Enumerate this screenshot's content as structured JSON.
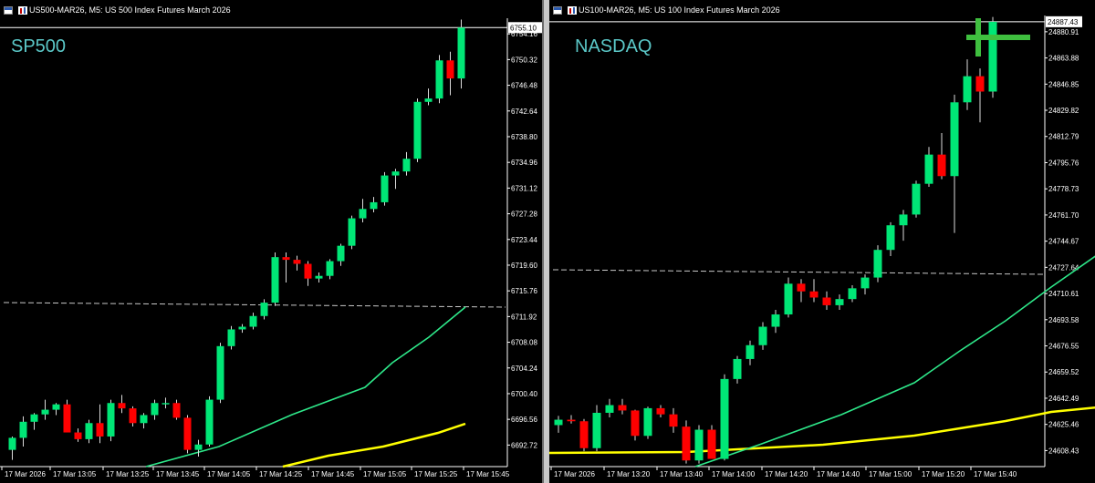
{
  "colors": {
    "background": "#000000",
    "bull_candle": "#00e676",
    "bear_candle": "#ff0000",
    "ma_fast": "#2ee88a",
    "ma_slow": "#ffff00",
    "axis_text": "#ffffff",
    "label_text": "#5bc8c8"
  },
  "charts": [
    {
      "id": "left",
      "title": "US500-MAR26, M5:  US 500 Index Futures March 2026",
      "label": "SP500",
      "icons": [
        "chart-window-icon",
        "candlestick-icon"
      ]
    },
    {
      "id": "right",
      "title": "US100-MAR26, M5:  US 100 Index Futures March 2026",
      "label": "NASDAQ",
      "icons": [
        "chart-window-icon",
        "candlestick-icon"
      ]
    }
  ],
  "chart_data": [
    {
      "type": "candlestick",
      "symbol": "US500-MAR26",
      "timeframe": "M5",
      "y_ticks": [
        "6754.16",
        "6750.32",
        "6746.48",
        "6742.64",
        "6738.80",
        "6734.96",
        "6731.12",
        "6727.28",
        "6723.44",
        "6719.60",
        "6715.76",
        "6711.92",
        "6708.08",
        "6704.24",
        "6700.40",
        "6696.56",
        "6692.72"
      ],
      "ylim": [
        6689.5,
        6756.5
      ],
      "current_price": "6755.10",
      "x_ticks": [
        "17 Mar 2026",
        "17 Mar 13:05",
        "17 Mar 13:25",
        "17 Mar 13:45",
        "17 Mar 14:05",
        "17 Mar 14:25",
        "17 Mar 14:45",
        "17 Mar 15:05",
        "17 Mar 15:25",
        "17 Mar 15:45"
      ],
      "candles": [
        [
          6692.0,
          6694.0,
          6690.5,
          6693.8
        ],
        [
          6693.8,
          6697.0,
          6692.5,
          6696.2
        ],
        [
          6696.2,
          6697.5,
          6695.0,
          6697.3
        ],
        [
          6697.3,
          6699.5,
          6696.5,
          6698.0
        ],
        [
          6698.0,
          6699.0,
          6697.2,
          6698.8
        ],
        [
          6698.8,
          6699.5,
          6695.0,
          6694.6
        ],
        [
          6694.6,
          6695.2,
          6693.2,
          6693.6
        ],
        [
          6693.6,
          6696.5,
          6693.0,
          6696.0
        ],
        [
          6696.0,
          6698.8,
          6693.0,
          6694.0
        ],
        [
          6694.0,
          6699.5,
          6693.3,
          6699.0
        ],
        [
          6699.0,
          6700.2,
          6697.5,
          6698.2
        ],
        [
          6698.2,
          6698.5,
          6695.5,
          6696.0
        ],
        [
          6696.0,
          6697.5,
          6695.2,
          6697.2
        ],
        [
          6697.2,
          6699.5,
          6696.5,
          6699.0
        ],
        [
          6699.0,
          6699.8,
          6698.2,
          6699.0
        ],
        [
          6699.0,
          6699.5,
          6696.5,
          6696.8
        ],
        [
          6696.8,
          6697.2,
          6691.5,
          6692.0
        ],
        [
          6692.0,
          6693.5,
          6691.0,
          6692.8
        ],
        [
          6692.8,
          6700.0,
          6692.5,
          6699.5
        ],
        [
          6699.5,
          6708.0,
          6699.0,
          6707.5
        ],
        [
          6707.5,
          6710.5,
          6707.0,
          6710.0
        ],
        [
          6710.0,
          6710.8,
          6709.5,
          6710.4
        ],
        [
          6710.4,
          6712.5,
          6710.0,
          6712.0
        ],
        [
          6712.0,
          6714.5,
          6711.5,
          6714.0
        ],
        [
          6714.0,
          6721.5,
          6713.5,
          6720.8
        ],
        [
          6720.8,
          6721.5,
          6717.0,
          6720.4
        ],
        [
          6720.4,
          6721.0,
          6718.8,
          6719.8
        ],
        [
          6719.8,
          6720.2,
          6716.5,
          6717.6
        ],
        [
          6717.6,
          6718.5,
          6717.0,
          6718.0
        ],
        [
          6718.0,
          6720.5,
          6717.5,
          6720.2
        ],
        [
          6720.2,
          6722.8,
          6719.5,
          6722.5
        ],
        [
          6722.5,
          6727.0,
          6722.0,
          6726.6
        ],
        [
          6726.6,
          6729.5,
          6726.0,
          6728.0
        ],
        [
          6728.0,
          6729.8,
          6727.5,
          6729.0
        ],
        [
          6729.0,
          6733.5,
          6728.5,
          6733.0
        ],
        [
          6733.0,
          6734.0,
          6731.0,
          6733.6
        ],
        [
          6733.6,
          6736.5,
          6733.0,
          6735.5
        ],
        [
          6735.5,
          6744.5,
          6735.0,
          6744.0
        ],
        [
          6744.0,
          6746.0,
          6743.5,
          6744.5
        ],
        [
          6744.5,
          6751.0,
          6743.8,
          6750.2
        ],
        [
          6750.2,
          6751.5,
          6745.0,
          6747.5
        ],
        [
          6747.5,
          6756.3,
          6746.0,
          6755.1
        ]
      ],
      "series": [
        {
          "name": "",
          "type": "line",
          "color": "#2ee88a"
        },
        {
          "name": "",
          "type": "line",
          "color": "#ffff00"
        }
      ]
    },
    {
      "type": "candlestick",
      "symbol": "US100-MAR26",
      "timeframe": "M5",
      "y_ticks": [
        "24880.91",
        "24863.88",
        "24846.85",
        "24829.82",
        "24812.79",
        "24795.76",
        "24778.73",
        "24761.70",
        "24744.67",
        "24727.64",
        "24710.61",
        "24693.58",
        "24676.55",
        "24659.52",
        "24642.49",
        "24625.46",
        "24608.43"
      ],
      "ylim": [
        24598.0,
        24891.5
      ],
      "current_price": "24887.43",
      "x_ticks": [
        "17 Mar 2026",
        "17 Mar 13:20",
        "17 Mar 13:40",
        "17 Mar 14:00",
        "17 Mar 14:20",
        "17 Mar 14:40",
        "17 Mar 15:00",
        "17 Mar 15:20",
        "17 Mar 15:40"
      ],
      "candles": [
        [
          24625.0,
          24631.0,
          24620.0,
          24628.5
        ],
        [
          24628.5,
          24631.5,
          24626.0,
          24627.5
        ],
        [
          24627.5,
          24629.0,
          24608.0,
          24610.0
        ],
        [
          24610.0,
          24638.0,
          24608.0,
          24633.0
        ],
        [
          24633.0,
          24642.0,
          24630.0,
          24638.0
        ],
        [
          24638.0,
          24642.0,
          24632.0,
          24634.5
        ],
        [
          24634.5,
          24635.0,
          24615.0,
          24618.0
        ],
        [
          24618.0,
          24637.0,
          24616.0,
          24636.0
        ],
        [
          24636.0,
          24638.0,
          24630.0,
          24632.0
        ],
        [
          24632.0,
          24636.0,
          24620.0,
          24624.0
        ],
        [
          24624.0,
          24628.0,
          24600.0,
          24602.0
        ],
        [
          24602.0,
          24625.0,
          24600.0,
          24622.0
        ],
        [
          24622.0,
          24625.0,
          24605.0,
          24603.0
        ],
        [
          24603.0,
          24658.0,
          24602.0,
          24655.0
        ],
        [
          24655.0,
          24670.0,
          24652.0,
          24668.0
        ],
        [
          24668.0,
          24680.0,
          24664.0,
          24677.0
        ],
        [
          24677.0,
          24692.0,
          24674.0,
          24689.0
        ],
        [
          24689.0,
          24700.0,
          24685.0,
          24697.0
        ],
        [
          24697.0,
          24721.0,
          24695.0,
          24717.0
        ],
        [
          24717.0,
          24720.0,
          24705.0,
          24712.0
        ],
        [
          24712.0,
          24720.0,
          24705.0,
          24708.0
        ],
        [
          24708.0,
          24712.0,
          24700.0,
          24703.0
        ],
        [
          24703.0,
          24710.0,
          24700.0,
          24707.0
        ],
        [
          24707.0,
          24716.0,
          24705.0,
          24714.0
        ],
        [
          24714.0,
          24723.0,
          24710.0,
          24721.0
        ],
        [
          24721.0,
          24742.0,
          24718.0,
          24739.0
        ],
        [
          24739.0,
          24757.0,
          24735.0,
          24755.0
        ],
        [
          24755.0,
          24765.0,
          24745.0,
          24762.0
        ],
        [
          24762.0,
          24784.0,
          24760.0,
          24782.0
        ],
        [
          24782.0,
          24806.0,
          24780.0,
          24801.0
        ],
        [
          24801.0,
          24815.0,
          24785.0,
          24787.0
        ],
        [
          24787.0,
          24840.0,
          24750.0,
          24835.0
        ],
        [
          24835.0,
          24863.0,
          24830.0,
          24852.0
        ],
        [
          24852.0,
          24857.0,
          24822.0,
          24842.0
        ],
        [
          24842.0,
          24890.5,
          24838.0,
          24887.4
        ]
      ],
      "series": [
        {
          "name": "",
          "type": "line",
          "color": "#2ee88a"
        },
        {
          "name": "",
          "type": "line",
          "color": "#ffff00"
        }
      ]
    }
  ]
}
